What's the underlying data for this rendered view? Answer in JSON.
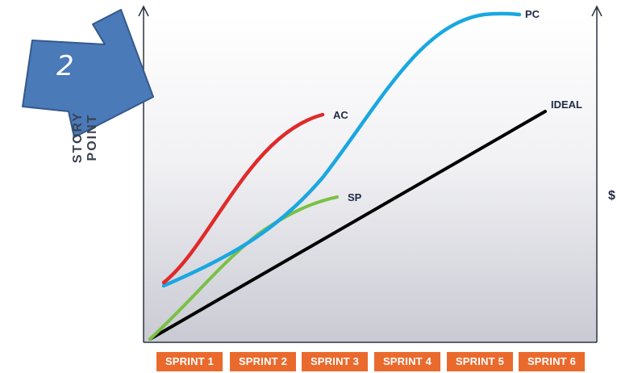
{
  "step_badge": {
    "number": "2",
    "color": "#4a7ab8"
  },
  "axes": {
    "y_left_label": "STORY POINT",
    "y_right_label": "$"
  },
  "colors": {
    "sprint_fill": "#ea6a2e",
    "pc": "#1aa7e0",
    "ac": "#e02a2a",
    "sp": "#7ac143",
    "ideal": "#000000"
  },
  "chart_data": {
    "type": "line",
    "categories": [
      "SPRINT 1",
      "SPRINT 2",
      "SPRINT 3",
      "SPRINT 4",
      "SPRINT 5",
      "SPRINT 6"
    ],
    "series": [
      {
        "name": "PC"
      },
      {
        "name": "AC"
      },
      {
        "name": "SP"
      },
      {
        "name": "IDEAL"
      }
    ]
  }
}
